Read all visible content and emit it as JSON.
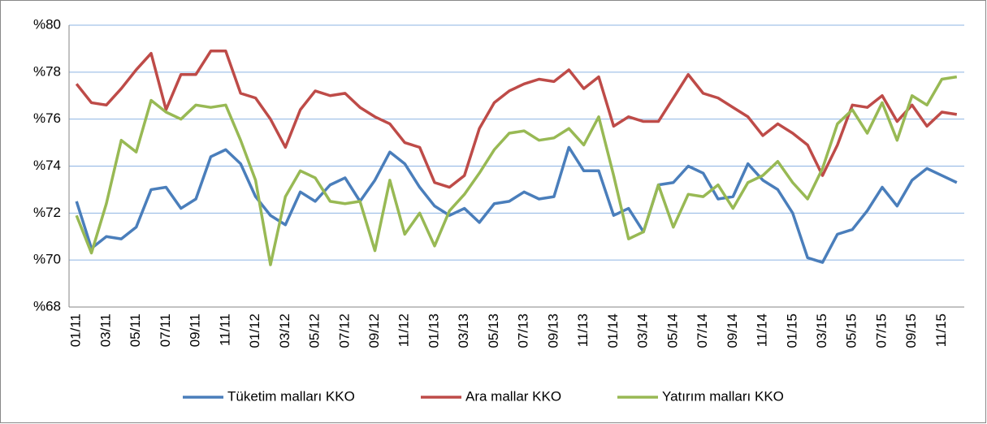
{
  "chart_data": {
    "type": "line",
    "categories": [
      "01/11",
      null,
      "03/11",
      null,
      "05/11",
      null,
      "07/11",
      null,
      "09/11",
      null,
      "11/11",
      null,
      "01/12",
      null,
      "03/12",
      null,
      "05/12",
      null,
      "07/12",
      null,
      "09/12",
      null,
      "11/12",
      null,
      "01/13",
      null,
      "03/13",
      null,
      "05/13",
      null,
      "07/13",
      null,
      "09/13",
      null,
      "11/13",
      null,
      "01/14",
      null,
      "03/14",
      null,
      "05/14",
      null,
      "07/14",
      null,
      "09/14",
      null,
      "11/14",
      null,
      "01/15",
      null,
      "03/15",
      null,
      "05/15",
      null,
      "07/15",
      null,
      "09/15",
      null,
      "11/15",
      null
    ],
    "series": [
      {
        "name": "Tüketim malları KKO",
        "color": "#4a7ebb",
        "values": [
          72.5,
          70.5,
          71.0,
          70.9,
          71.4,
          73.0,
          73.1,
          72.2,
          72.6,
          74.4,
          74.7,
          74.1,
          72.7,
          71.9,
          71.5,
          72.9,
          72.5,
          73.2,
          73.5,
          72.5,
          73.4,
          74.6,
          74.1,
          73.1,
          72.3,
          71.9,
          72.2,
          71.6,
          72.4,
          72.5,
          72.9,
          72.6,
          72.7,
          74.8,
          73.8,
          73.8,
          71.9,
          72.2,
          71.2,
          73.2,
          73.3,
          74.0,
          73.7,
          72.6,
          72.7,
          74.1,
          73.4,
          73.0,
          72.0,
          70.1,
          69.9,
          71.1,
          71.3,
          72.1,
          73.1,
          72.3,
          73.4,
          73.9,
          73.6,
          73.3
        ]
      },
      {
        "name": "Ara mallar KKO",
        "color": "#be4b48",
        "values": [
          77.5,
          76.7,
          76.6,
          77.3,
          78.1,
          78.8,
          76.4,
          77.9,
          77.9,
          78.9,
          78.9,
          77.1,
          76.9,
          76.0,
          74.8,
          76.4,
          77.2,
          77.0,
          77.1,
          76.5,
          76.1,
          75.8,
          75.0,
          74.8,
          73.3,
          73.1,
          73.6,
          75.6,
          76.7,
          77.2,
          77.5,
          77.7,
          77.6,
          78.1,
          77.3,
          77.8,
          75.7,
          76.1,
          75.9,
          75.9,
          76.9,
          77.9,
          77.1,
          76.9,
          76.5,
          76.1,
          75.3,
          75.8,
          75.4,
          74.9,
          73.6,
          74.9,
          76.6,
          76.5,
          77.0,
          75.9,
          76.6,
          75.7,
          76.3,
          76.2
        ]
      },
      {
        "name": "Yatırım malları KKO",
        "color": "#98b954",
        "values": [
          71.9,
          70.3,
          72.4,
          75.1,
          74.6,
          76.8,
          76.3,
          76.0,
          76.6,
          76.5,
          76.6,
          75.1,
          73.4,
          69.8,
          72.7,
          73.8,
          73.5,
          72.5,
          72.4,
          72.5,
          70.4,
          73.4,
          71.1,
          72.0,
          70.6,
          72.1,
          72.8,
          73.7,
          74.7,
          75.4,
          75.5,
          75.1,
          75.2,
          75.6,
          74.9,
          76.1,
          73.6,
          70.9,
          71.2,
          73.2,
          71.4,
          72.8,
          72.7,
          73.2,
          72.2,
          73.3,
          73.6,
          74.2,
          73.3,
          72.6,
          73.9,
          75.8,
          76.4,
          75.4,
          76.7,
          75.1,
          77.0,
          76.6,
          77.7,
          77.8
        ]
      }
    ],
    "ylim": [
      68,
      80
    ],
    "yticks": [
      {
        "value": 68,
        "label": "%68"
      },
      {
        "value": 70,
        "label": "%70"
      },
      {
        "value": 72,
        "label": "%72"
      },
      {
        "value": 74,
        "label": "%74"
      },
      {
        "value": 76,
        "label": "%76"
      },
      {
        "value": 78,
        "label": "%78"
      },
      {
        "value": 80,
        "label": "%80"
      }
    ],
    "grid": true,
    "legend": "bottom"
  }
}
